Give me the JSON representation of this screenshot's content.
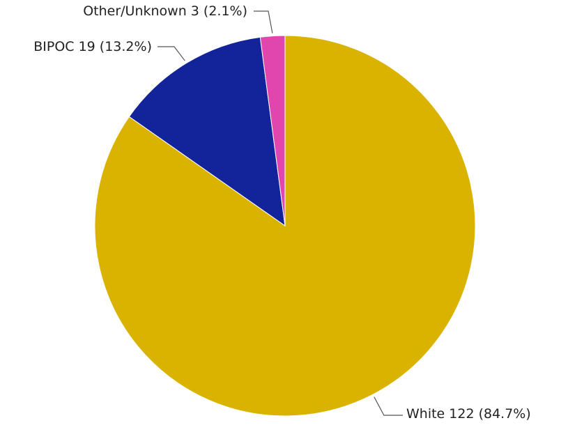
{
  "chart_data": {
    "type": "pie",
    "title": "",
    "start_angle_deg": 0,
    "direction": "clockwise",
    "slices": [
      {
        "label": "White",
        "value": 122,
        "percent": "84.7%",
        "display": "White 122 (84.7%)",
        "color": "#D9B300"
      },
      {
        "label": "BIPOC",
        "value": 19,
        "percent": "13.2%",
        "display": "BIPOC 19 (13.2%)",
        "color": "#13249A"
      },
      {
        "label": "Other/Unknown",
        "value": 3,
        "percent": "2.1%",
        "display": "Other/Unknown 3 (2.1%)",
        "color": "#E046AE"
      }
    ],
    "legend": "none",
    "slice_border_color": "#FFFFFF"
  }
}
